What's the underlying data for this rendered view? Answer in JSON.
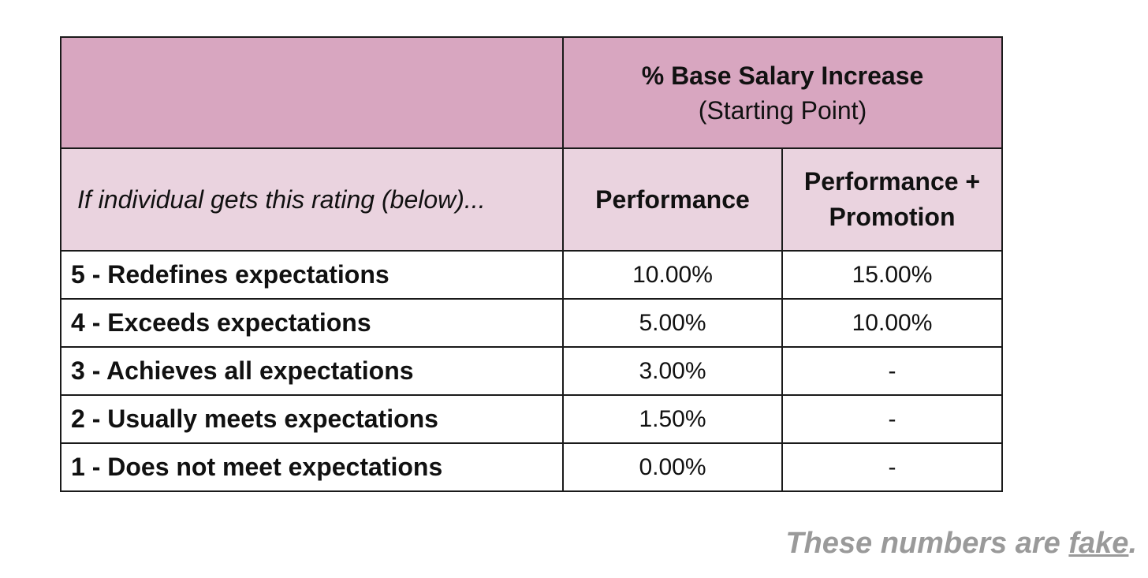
{
  "table": {
    "header": {
      "corner": "",
      "title": "% Base Salary Increase",
      "subtitle": "(Starting Point)"
    },
    "subheader": {
      "rating_label": "If individual gets this rating (below)...",
      "col_performance": "Performance",
      "col_promotion": "Performance + Promotion"
    },
    "rows": [
      {
        "rating": "5 - Redefines expectations",
        "performance": "10.00%",
        "promotion": "15.00%"
      },
      {
        "rating": "4 - Exceeds expectations",
        "performance": "5.00%",
        "promotion": "10.00%"
      },
      {
        "rating": "3 - Achieves all expectations",
        "performance": "3.00%",
        "promotion": "-"
      },
      {
        "rating": "2 - Usually meets expectations",
        "performance": "1.50%",
        "promotion": "-"
      },
      {
        "rating": "1 - Does not meet expectations",
        "performance": "0.00%",
        "promotion": "-"
      }
    ],
    "colors": {
      "header_bg": "#d8a6c0",
      "subheader_bg": "#ead3df",
      "border": "#1a1a1a"
    }
  },
  "footnote": {
    "prefix": "These numbers are ",
    "emphasis": "fake",
    "suffix": ".",
    "color": "#9a9a9a"
  }
}
